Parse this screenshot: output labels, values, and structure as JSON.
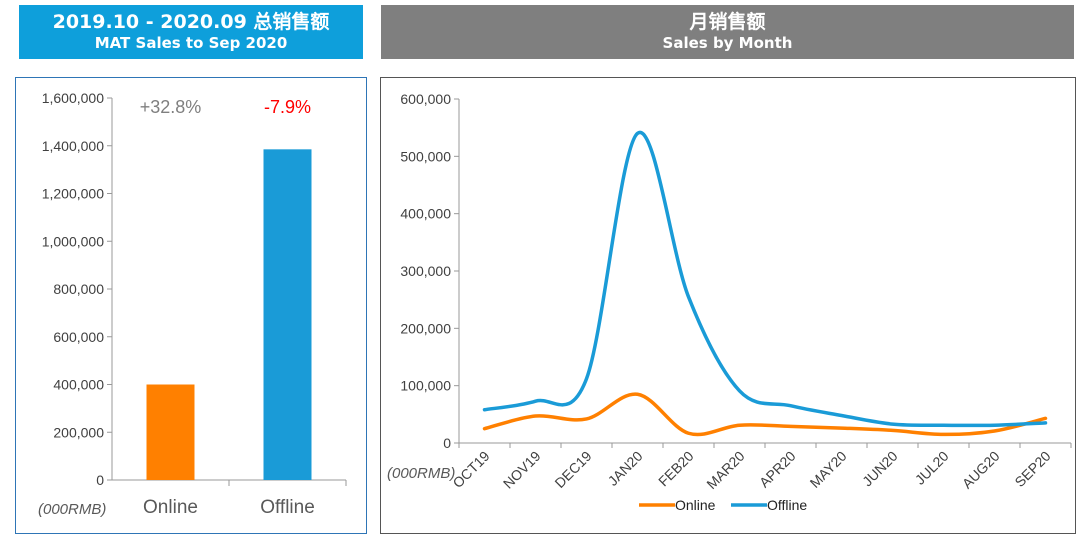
{
  "header_left": {
    "line1": "2019.10 - 2020.09 总销售额",
    "line2": "MAT Sales to Sep 2020",
    "bg": "#0e9fdb"
  },
  "header_right": {
    "line1": "月销售额",
    "line2": "Sales by Month",
    "bg": "#7f7f7f"
  },
  "colors": {
    "online": "#ff8000",
    "offline": "#1a9bd7",
    "positive": "#7f7f7f",
    "negative": "#ff0000"
  },
  "chart_data": [
    {
      "type": "bar",
      "unit_label": "(000RMB)",
      "categories": [
        "Online",
        "Offline"
      ],
      "values": [
        400000,
        1385000
      ],
      "growth_labels": [
        "+32.8%",
        "-7.9%"
      ],
      "ylim": [
        0,
        1600000
      ],
      "yticks": [
        0,
        200000,
        400000,
        600000,
        800000,
        1000000,
        1200000,
        1400000,
        1600000
      ],
      "ytick_labels": [
        "0",
        "200,000",
        "400,000",
        "600,000",
        "800,000",
        "1,000,000",
        "1,200,000",
        "1,400,000",
        "1,600,000"
      ],
      "grid": false
    },
    {
      "type": "line",
      "unit_label": "(000RMB)",
      "x": [
        "OCT19",
        "NOV19",
        "DEC19",
        "JAN20",
        "FEB20",
        "MAR20",
        "APR20",
        "MAY20",
        "JUN20",
        "JUL20",
        "AUG20",
        "SEP20"
      ],
      "series": [
        {
          "name": "Online",
          "values": [
            25000,
            47000,
            42000,
            85000,
            17000,
            31000,
            29000,
            26000,
            22000,
            15000,
            21000,
            43000
          ]
        },
        {
          "name": "Offline",
          "values": [
            58000,
            73000,
            112000,
            540000,
            255000,
            91000,
            65000,
            48000,
            33000,
            31000,
            31000,
            35000
          ]
        }
      ],
      "ylim": [
        0,
        600000
      ],
      "yticks": [
        0,
        100000,
        200000,
        300000,
        400000,
        500000,
        600000
      ],
      "ytick_labels": [
        "0",
        "100,000",
        "200,000",
        "300,000",
        "400,000",
        "500,000",
        "600,000"
      ],
      "legend": "bottom-center",
      "grid": false
    }
  ]
}
